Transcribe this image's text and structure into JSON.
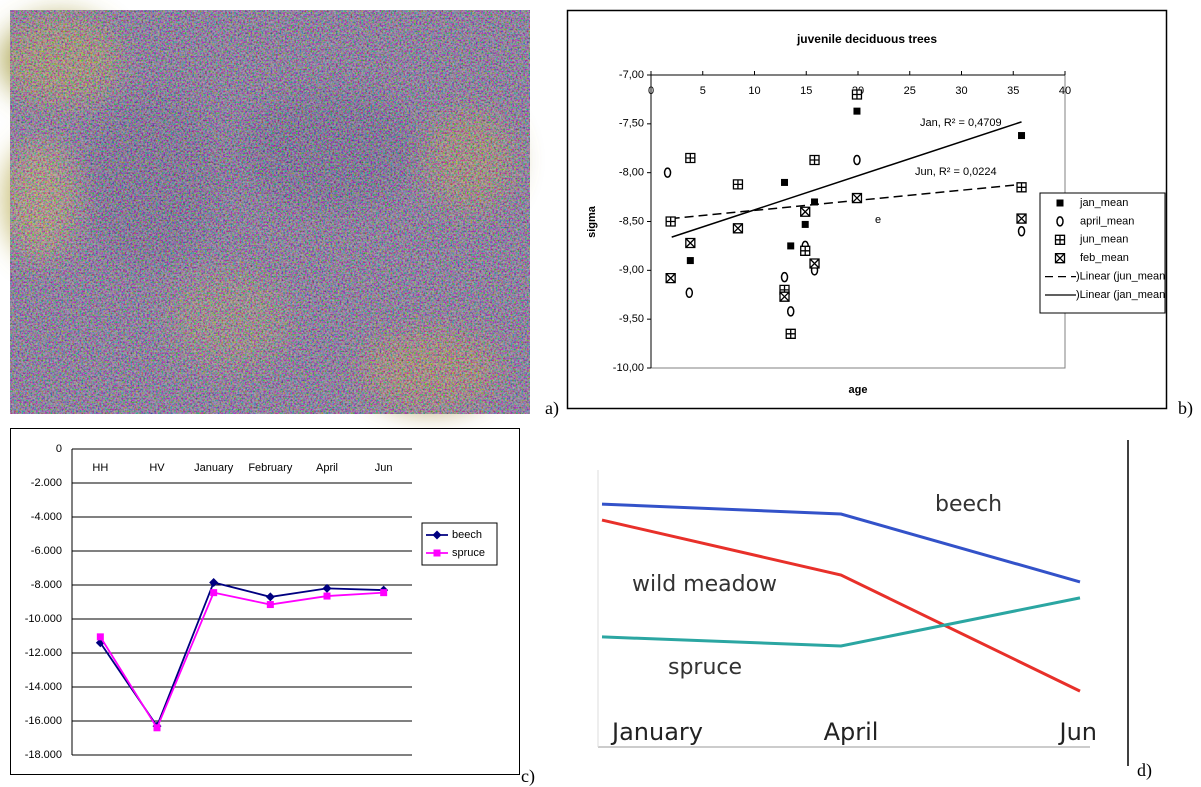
{
  "panel_labels": [
    "a)",
    "b)",
    "c)",
    "d)"
  ],
  "chart_data": [
    {
      "type": "scatter",
      "title": "juvenile deciduous trees",
      "x_label": "age",
      "y_label": "sigma",
      "xlim": [
        0,
        40
      ],
      "xticks": [
        0,
        5,
        10,
        15,
        20,
        25,
        30,
        35,
        40
      ],
      "ylim": [
        -10,
        -7
      ],
      "yticks": [
        {
          "value": -7,
          "label": "-7,00"
        },
        {
          "value": -7.5,
          "label": "-7,50"
        },
        {
          "value": -8,
          "label": "-8,00"
        },
        {
          "value": -8.5,
          "label": "-8,50"
        },
        {
          "value": -9,
          "label": "-9,00"
        },
        {
          "value": -9.5,
          "label": "-9,50"
        },
        {
          "value": -10,
          "label": "-10,00"
        }
      ],
      "grid": false,
      "series": [
        {
          "name": "jan_mean",
          "color": "#000000",
          "marker": "square-filled",
          "x": [
            2,
            3.8,
            12.9,
            13.5,
            14.9,
            15.8,
            19.9,
            35.8
          ],
          "values": [
            -8.5,
            -8.9,
            -8.1,
            -8.75,
            -8.53,
            -8.3,
            -7.37,
            -7.62
          ]
        },
        {
          "name": "april_mean",
          "color": "#000000",
          "marker": "ellipse-open",
          "x": [
            1.6,
            3.7,
            12.9,
            13.5,
            14.9,
            15.8,
            19.9,
            35.8
          ],
          "values": [
            -8.0,
            -9.23,
            -9.07,
            -9.42,
            -8.75,
            -9.0,
            -7.87,
            -8.6
          ]
        },
        {
          "name": "jun_mean",
          "color": "#000000",
          "marker": "box-plus",
          "x": [
            1.9,
            3.8,
            8.4,
            12.9,
            13.5,
            14.9,
            15.8,
            19.9,
            35.8
          ],
          "values": [
            -8.5,
            -7.85,
            -8.12,
            -9.2,
            -9.65,
            -8.8,
            -7.87,
            -7.2,
            -8.15
          ]
        },
        {
          "name": "feb_mean",
          "color": "#000000",
          "marker": "box-x",
          "x": [
            1.9,
            3.8,
            8.4,
            12.9,
            14.9,
            15.8,
            19.9,
            35.8
          ],
          "values": [
            -9.08,
            -8.72,
            -8.57,
            -9.27,
            -8.4,
            -8.93,
            -8.26,
            -8.47
          ]
        },
        {
          "name": ")Linear (jun_mean",
          "color": "#000000",
          "line_style": "dashed",
          "x": [
            1.9,
            35.8
          ],
          "values": [
            -8.47,
            -8.12
          ]
        },
        {
          "name": ")Linear (jan_mean",
          "color": "#000000",
          "line_style": "solid",
          "x": [
            2,
            35.8
          ],
          "values": [
            -8.66,
            -7.48
          ]
        }
      ],
      "annotations": [
        "Jan, R² = 0,4709",
        "Jun, R² = 0,0224",
        "e"
      ],
      "legend": "right"
    },
    {
      "type": "line",
      "categories": [
        "HH",
        "HV",
        "January",
        "February",
        "April",
        "Jun"
      ],
      "ylim": [
        -18000,
        0
      ],
      "yticks": [
        0,
        {
          "value": -2000,
          "label": "-2.000"
        },
        {
          "value": -4000,
          "label": "-4.000"
        },
        {
          "value": -6000,
          "label": "-6.000"
        },
        {
          "value": -8000,
          "label": "-8.000"
        },
        {
          "value": -10000,
          "label": "-10.000"
        },
        {
          "value": -12000,
          "label": "-12.000"
        },
        {
          "value": -14000,
          "label": "-14.000"
        },
        {
          "value": -16000,
          "label": "-16.000"
        },
        {
          "value": -18000,
          "label": "-18.000"
        }
      ],
      "grid": true,
      "series": [
        {
          "name": "beech",
          "color": "#000080",
          "marker": "diamond",
          "values": [
            -11400,
            -16300,
            -7850,
            -8700,
            -8200,
            -8300
          ]
        },
        {
          "name": "spruce",
          "color": "#ff00ff",
          "marker": "square",
          "values": [
            -11050,
            -16400,
            -8450,
            -9150,
            -8650,
            -8450
          ]
        }
      ],
      "legend": "right"
    },
    {
      "type": "line",
      "categories": [
        "January",
        "April",
        "Jun"
      ],
      "ylim": [
        0,
        100
      ],
      "series": [
        {
          "name": "beech",
          "color": "#3352c9",
          "values": [
            87.6,
            84,
            59.3
          ]
        },
        {
          "name": "wild meadow",
          "color": "#e8302a",
          "values": [
            81.8,
            61.8,
            19.6
          ]
        },
        {
          "name": "spruce",
          "color": "#2ba6a2",
          "values": [
            39.3,
            36,
            53.5
          ]
        }
      ],
      "legend": "inline"
    }
  ]
}
